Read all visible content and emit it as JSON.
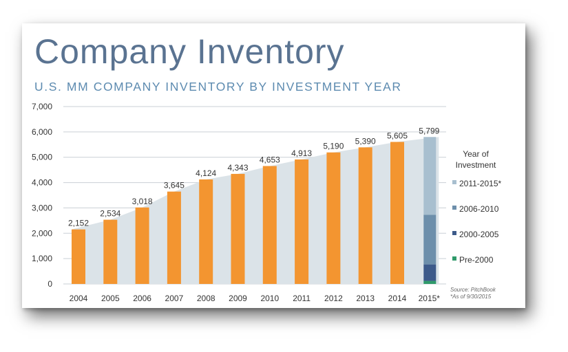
{
  "title": "Company Inventory",
  "subtitle": "U.S. MM COMPANY INVENTORY BY INVESTMENT YEAR",
  "source_line1": "Source: PitchBook",
  "source_line2": "*As of 9/30/2015",
  "colors": {
    "bar": "#f39530",
    "area": "#dbe3e8",
    "title": "#5a7391",
    "subtitle": "#5d8bb0",
    "grid": "#c9cfd5"
  },
  "chart_data": {
    "type": "bar",
    "title": "Company Inventory",
    "subtitle": "U.S. MM COMPANY INVENTORY BY INVESTMENT YEAR",
    "categories": [
      "2004",
      "2005",
      "2006",
      "2007",
      "2008",
      "2009",
      "2010",
      "2011",
      "2012",
      "2013",
      "2014",
      "2015*"
    ],
    "values": [
      2152,
      2534,
      3018,
      3645,
      4124,
      4343,
      4653,
      4913,
      5190,
      5390,
      5605,
      5799
    ],
    "value_labels": [
      "2,152",
      "2,534",
      "3,018",
      "3,645",
      "4,124",
      "4,343",
      "4,653",
      "4,913",
      "5,190",
      "5,390",
      "5,605",
      "5,799"
    ],
    "ylim": [
      0,
      7000
    ],
    "yticks": [
      0,
      1000,
      2000,
      3000,
      4000,
      5000,
      6000,
      7000
    ],
    "ytick_labels": [
      "0",
      "1,000",
      "2,000",
      "3,000",
      "4,000",
      "5,000",
      "6,000",
      "7,000"
    ],
    "grid": true,
    "background_area": "cumulative inventory trend shaded behind bars",
    "stacked_last_bar": {
      "category": "2015*",
      "legend_title": [
        "Year of",
        "Investment"
      ],
      "legend_position": "right",
      "segments": [
        {
          "name": "Pre-2000",
          "value": 120,
          "color": "#2f9a6a"
        },
        {
          "name": "2000-2005",
          "value": 650,
          "color": "#3d5a8a"
        },
        {
          "name": "2006-2010",
          "value": 1960,
          "color": "#6d8fab"
        },
        {
          "name": "2011-2015*",
          "value": 3069,
          "color": "#a8bfcf"
        }
      ]
    }
  }
}
